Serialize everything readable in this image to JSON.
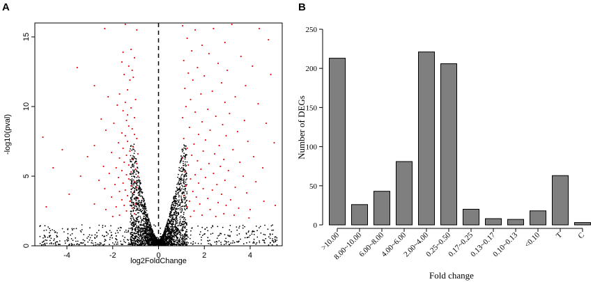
{
  "panels": {
    "a_label": "A",
    "b_label": "B"
  },
  "colors": {
    "significant": "#e8161b",
    "nonsignificant": "#000000",
    "bar_fill": "#7f7f7f",
    "bar_stroke": "#000000"
  },
  "chart_data": [
    {
      "type": "scatter",
      "title": "",
      "xlabel": "log2FoldChange",
      "ylabel": "-log10(pval)",
      "xlim": [
        -5.4,
        5.4
      ],
      "ylim": [
        0,
        16
      ],
      "xticks": [
        -4,
        -2,
        0,
        2,
        4
      ],
      "xtick_labels": [
        "-4",
        "-2",
        "0",
        "2",
        "4"
      ],
      "yticks": [
        0,
        5,
        10,
        15
      ],
      "ytick_labels": [
        "0",
        "5",
        "10",
        "15"
      ],
      "reference_line_x": 0,
      "series": [
        {
          "name": "significant",
          "color": "#e8161b",
          "points": [
            [
              -1.45,
              15.9
            ],
            [
              -0.95,
              15.5
            ],
            [
              -2.35,
              15.6
            ],
            [
              -1.2,
              14.1
            ],
            [
              -1.55,
              13.9
            ],
            [
              -1.05,
              13.5
            ],
            [
              -1.6,
              13.2
            ],
            [
              -1.3,
              12.9
            ],
            [
              -3.55,
              12.8
            ],
            [
              -1.15,
              12.6
            ],
            [
              -1.5,
              12.3
            ],
            [
              -1.1,
              12.1
            ],
            [
              -2.8,
              11.5
            ],
            [
              -1.25,
              11.9
            ],
            [
              -1.35,
              11.2
            ],
            [
              -1.7,
              10.9
            ],
            [
              -1.0,
              10.5
            ],
            [
              -2.2,
              10.7
            ],
            [
              -1.45,
              10.3
            ],
            [
              -1.8,
              10.1
            ],
            [
              -1.2,
              9.9
            ],
            [
              -1.55,
              9.7
            ],
            [
              -1.35,
              9.4
            ],
            [
              -2.5,
              9.1
            ],
            [
              -1.05,
              9.2
            ],
            [
              -1.4,
              9.0
            ],
            [
              -1.95,
              8.8
            ],
            [
              -1.3,
              8.6
            ],
            [
              -1.15,
              8.4
            ],
            [
              -2.3,
              8.3
            ],
            [
              -1.6,
              8.1
            ],
            [
              -1.05,
              8.0
            ],
            [
              -1.45,
              7.9
            ],
            [
              -0.95,
              7.7
            ],
            [
              -5.05,
              7.8
            ],
            [
              -1.35,
              7.5
            ],
            [
              -1.75,
              7.4
            ],
            [
              -2.8,
              7.2
            ],
            [
              -1.1,
              7.1
            ],
            [
              -1.55,
              7.0
            ],
            [
              -1.25,
              6.8
            ],
            [
              -2.05,
              6.7
            ],
            [
              -0.9,
              6.6
            ],
            [
              -1.4,
              6.5
            ],
            [
              -4.2,
              6.9
            ],
            [
              -1.7,
              6.3
            ],
            [
              -1.15,
              6.2
            ],
            [
              -3.1,
              6.4
            ],
            [
              -1.5,
              6.0
            ],
            [
              -0.95,
              5.9
            ],
            [
              -1.3,
              5.8
            ],
            [
              -2.4,
              5.7
            ],
            [
              -1.85,
              5.6
            ],
            [
              -4.6,
              5.6
            ],
            [
              -1.0,
              5.5
            ],
            [
              -1.6,
              5.4
            ],
            [
              -1.2,
              5.3
            ],
            [
              -2.15,
              5.2
            ],
            [
              -1.4,
              5.1
            ],
            [
              -3.4,
              5.0
            ],
            [
              -0.9,
              5.0
            ],
            [
              -1.75,
              4.9
            ],
            [
              -1.3,
              4.8
            ],
            [
              -2.6,
              4.7
            ],
            [
              -1.05,
              4.6
            ],
            [
              -1.55,
              4.5
            ],
            [
              -1.9,
              4.4
            ],
            [
              -1.2,
              4.3
            ],
            [
              -0.95,
              4.2
            ],
            [
              -2.35,
              4.1
            ],
            [
              -1.45,
              4.0
            ],
            [
              -1.7,
              3.9
            ],
            [
              -1.1,
              3.8
            ],
            [
              -3.9,
              3.7
            ],
            [
              -1.35,
              3.6
            ],
            [
              -2.05,
              3.5
            ],
            [
              -0.9,
              3.4
            ],
            [
              -1.6,
              3.3
            ],
            [
              -1.25,
              3.2
            ],
            [
              -2.8,
              3.0
            ],
            [
              -1.0,
              3.0
            ],
            [
              -1.5,
              2.9
            ],
            [
              -1.85,
              2.8
            ],
            [
              -1.15,
              2.7
            ],
            [
              -2.3,
              2.6
            ],
            [
              -1.4,
              2.5
            ],
            [
              -4.9,
              2.8
            ],
            [
              -1.7,
              2.2
            ],
            [
              -1.05,
              2.3
            ],
            [
              -2.0,
              2.1
            ],
            [
              1.05,
              15.8
            ],
            [
              1.6,
              15.5
            ],
            [
              2.4,
              15.6
            ],
            [
              3.2,
              15.9
            ],
            [
              4.4,
              15.6
            ],
            [
              1.25,
              14.9
            ],
            [
              2.9,
              14.6
            ],
            [
              1.9,
              14.4
            ],
            [
              4.8,
              14.8
            ],
            [
              1.45,
              14.0
            ],
            [
              2.2,
              13.8
            ],
            [
              3.6,
              13.6
            ],
            [
              1.1,
              13.3
            ],
            [
              2.6,
              13.1
            ],
            [
              4.1,
              12.9
            ],
            [
              1.7,
              12.8
            ],
            [
              3.0,
              12.6
            ],
            [
              1.3,
              12.4
            ],
            [
              2.0,
              12.2
            ],
            [
              4.9,
              12.3
            ],
            [
              1.5,
              11.9
            ],
            [
              2.75,
              11.7
            ],
            [
              3.8,
              11.5
            ],
            [
              1.15,
              11.3
            ],
            [
              2.35,
              11.1
            ],
            [
              1.85,
              10.9
            ],
            [
              3.35,
              10.7
            ],
            [
              1.4,
              10.5
            ],
            [
              2.9,
              10.3
            ],
            [
              4.35,
              10.2
            ],
            [
              1.2,
              10.0
            ],
            [
              2.15,
              9.8
            ],
            [
              1.6,
              9.6
            ],
            [
              3.1,
              9.5
            ],
            [
              2.5,
              9.3
            ],
            [
              1.05,
              9.2
            ],
            [
              3.75,
              9.0
            ],
            [
              1.9,
              8.9
            ],
            [
              2.8,
              8.7
            ],
            [
              4.7,
              8.8
            ],
            [
              1.35,
              8.5
            ],
            [
              2.25,
              8.3
            ],
            [
              3.45,
              8.2
            ],
            [
              1.75,
              8.0
            ],
            [
              2.95,
              7.9
            ],
            [
              1.1,
              7.7
            ],
            [
              2.05,
              7.6
            ],
            [
              3.9,
              7.5
            ],
            [
              1.55,
              7.3
            ],
            [
              2.65,
              7.2
            ],
            [
              5.05,
              7.4
            ],
            [
              1.25,
              7.0
            ],
            [
              3.25,
              6.9
            ],
            [
              1.95,
              6.8
            ],
            [
              2.45,
              6.6
            ],
            [
              1.45,
              6.5
            ],
            [
              4.15,
              6.4
            ],
            [
              1.05,
              6.3
            ],
            [
              2.85,
              6.2
            ],
            [
              1.7,
              6.1
            ],
            [
              3.55,
              6.0
            ],
            [
              2.2,
              5.9
            ],
            [
              1.3,
              5.8
            ],
            [
              2.7,
              5.7
            ],
            [
              4.55,
              5.6
            ],
            [
              1.85,
              5.5
            ],
            [
              3.05,
              5.4
            ],
            [
              1.15,
              5.3
            ],
            [
              2.4,
              5.2
            ],
            [
              1.6,
              5.1
            ],
            [
              3.7,
              5.0
            ],
            [
              2.05,
              4.9
            ],
            [
              1.4,
              4.8
            ],
            [
              2.9,
              4.7
            ],
            [
              4.25,
              4.6
            ],
            [
              1.75,
              4.5
            ],
            [
              2.55,
              4.4
            ],
            [
              1.2,
              4.3
            ],
            [
              3.35,
              4.2
            ],
            [
              1.95,
              4.1
            ],
            [
              2.35,
              4.0
            ],
            [
              1.5,
              3.9
            ],
            [
              3.85,
              3.8
            ],
            [
              2.75,
              3.7
            ],
            [
              1.1,
              3.6
            ],
            [
              1.65,
              3.5
            ],
            [
              2.15,
              3.4
            ],
            [
              3.15,
              3.3
            ],
            [
              1.35,
              3.2
            ],
            [
              2.6,
              3.1
            ],
            [
              4.6,
              3.2
            ],
            [
              1.8,
              3.0
            ],
            [
              2.95,
              2.9
            ],
            [
              1.25,
              2.8
            ],
            [
              3.5,
              2.7
            ],
            [
              2.25,
              2.6
            ],
            [
              1.55,
              2.5
            ],
            [
              4.0,
              2.6
            ],
            [
              2.85,
              2.3
            ],
            [
              1.9,
              2.2
            ],
            [
              3.3,
              2.2
            ],
            [
              5.1,
              2.9
            ],
            [
              2.5,
              2.1
            ],
            [
              1.4,
              2.1
            ],
            [
              3.95,
              2.0
            ]
          ]
        },
        {
          "name": "non-significant",
          "color": "#000000",
          "description": "dense black volcano of points with |log2FoldChange| < ~1 and low -log10(pval)"
        }
      ]
    },
    {
      "type": "bar",
      "title": "",
      "xlabel": "Fold change",
      "ylabel": "Number of DEGs",
      "ylim": [
        0,
        250
      ],
      "yticks": [
        0,
        50,
        100,
        150,
        200,
        250
      ],
      "ytick_labels": [
        "0",
        "50",
        "100",
        "150",
        "200",
        "250"
      ],
      "categories": [
        ">10.00",
        "8.00~10.00",
        "6.00~8.00",
        "4.00~6.00",
        "2.00~4.00",
        "0.25~0.50",
        "0.17~0.25",
        "0.13~0.17",
        "0.10~0.13",
        "<0.10",
        "T",
        "C"
      ],
      "values": [
        213,
        26,
        43,
        81,
        221,
        206,
        20,
        8,
        7,
        18,
        63,
        3
      ]
    }
  ]
}
